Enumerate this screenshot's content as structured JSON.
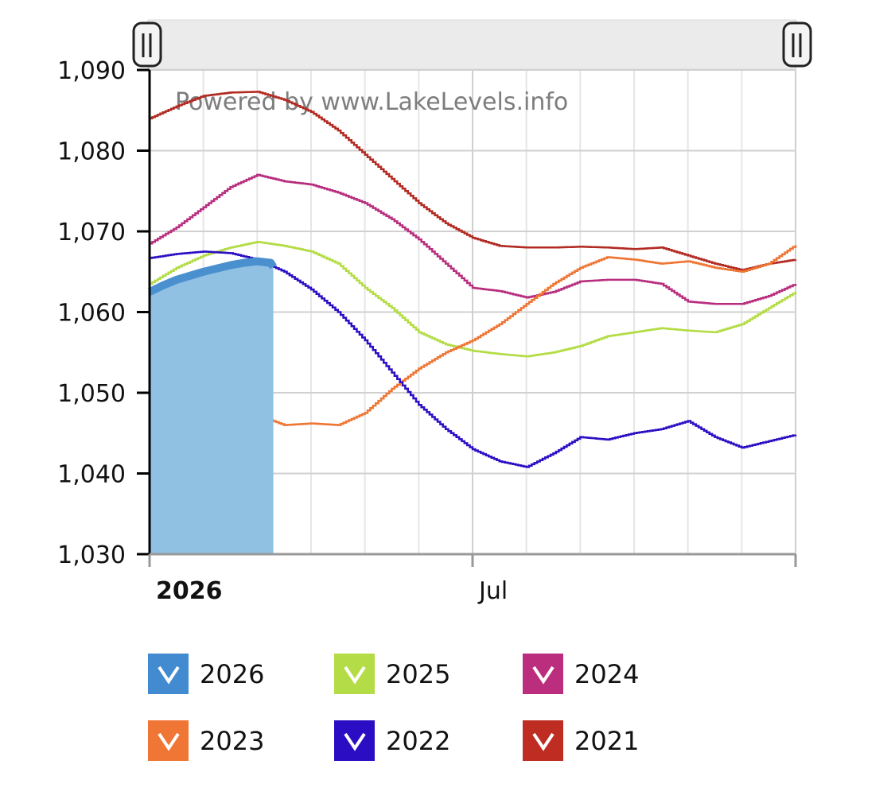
{
  "chart_data": {
    "type": "line",
    "watermark": "Powered by www.LakeLevels.info",
    "x_domain": [
      0,
      12
    ],
    "x_ticks": [
      {
        "x": 0,
        "label": "2026",
        "bold": true
      },
      {
        "x": 6,
        "label": "Jul",
        "bold": false
      }
    ],
    "y_ticks": [
      1030,
      1040,
      1050,
      1060,
      1070,
      1080,
      1090
    ],
    "y_tick_labels": [
      "1,030",
      "1,040",
      "1,050",
      "1,060",
      "1,070",
      "1,080",
      "1,090"
    ],
    "ylim": [
      1030,
      1090
    ],
    "grid": true,
    "legend_position": "bottom",
    "series": [
      {
        "name": "2021",
        "color": "#b22a22",
        "type": "line",
        "points": [
          [
            0,
            1084
          ],
          [
            0.5,
            1085.5
          ],
          [
            1,
            1086.8
          ],
          [
            1.5,
            1087.2
          ],
          [
            2,
            1087.3
          ],
          [
            2.5,
            1086.3
          ],
          [
            3,
            1084.8
          ],
          [
            3.5,
            1082.5
          ],
          [
            4,
            1079.5
          ],
          [
            4.5,
            1076.5
          ],
          [
            5,
            1073.5
          ],
          [
            5.5,
            1071
          ],
          [
            6,
            1069.2
          ],
          [
            6.5,
            1068.2
          ],
          [
            7,
            1068
          ],
          [
            7.5,
            1068
          ],
          [
            8,
            1068.1
          ],
          [
            8.5,
            1068
          ],
          [
            9,
            1067.8
          ],
          [
            9.5,
            1068
          ],
          [
            10,
            1067
          ],
          [
            10.5,
            1066
          ],
          [
            11,
            1065.2
          ],
          [
            11.5,
            1066
          ],
          [
            12,
            1066.5
          ]
        ]
      },
      {
        "name": "2024",
        "color": "#b82e7e",
        "type": "line",
        "points": [
          [
            0,
            1068.5
          ],
          [
            0.5,
            1070.5
          ],
          [
            1,
            1073
          ],
          [
            1.5,
            1075.5
          ],
          [
            2,
            1077
          ],
          [
            2.5,
            1076.2
          ],
          [
            3,
            1075.8
          ],
          [
            3.5,
            1074.8
          ],
          [
            4,
            1073.5
          ],
          [
            4.5,
            1071.5
          ],
          [
            5,
            1069
          ],
          [
            5.5,
            1066
          ],
          [
            6,
            1063
          ],
          [
            6.5,
            1062.6
          ],
          [
            7,
            1061.8
          ],
          [
            7.5,
            1062.5
          ],
          [
            8,
            1063.8
          ],
          [
            8.5,
            1064
          ],
          [
            9,
            1064
          ],
          [
            9.5,
            1063.5
          ],
          [
            10,
            1061.3
          ],
          [
            10.5,
            1061
          ],
          [
            11,
            1061
          ],
          [
            11.5,
            1062
          ],
          [
            12,
            1063.5
          ]
        ]
      },
      {
        "name": "2025",
        "color": "#b4dc46",
        "type": "line",
        "points": [
          [
            0,
            1063.5
          ],
          [
            0.5,
            1065.5
          ],
          [
            1,
            1067
          ],
          [
            1.5,
            1068
          ],
          [
            2,
            1068.7
          ],
          [
            2.5,
            1068.2
          ],
          [
            3,
            1067.5
          ],
          [
            3.5,
            1066
          ],
          [
            4,
            1063
          ],
          [
            4.5,
            1060.5
          ],
          [
            5,
            1057.5
          ],
          [
            5.5,
            1056
          ],
          [
            6,
            1055.2
          ],
          [
            6.5,
            1054.8
          ],
          [
            7,
            1054.5
          ],
          [
            7.5,
            1055
          ],
          [
            8,
            1055.8
          ],
          [
            8.5,
            1057
          ],
          [
            9,
            1057.5
          ],
          [
            9.5,
            1058
          ],
          [
            10,
            1057.7
          ],
          [
            10.5,
            1057.5
          ],
          [
            11,
            1058.5
          ],
          [
            11.5,
            1060.5
          ],
          [
            12,
            1062.5
          ]
        ]
      },
      {
        "name": "2023",
        "color": "#ee7634",
        "type": "line",
        "points": [
          [
            0,
            1045.2
          ],
          [
            0.5,
            1045.8
          ],
          [
            1,
            1047
          ],
          [
            1.5,
            1047.5
          ],
          [
            2,
            1047.2
          ],
          [
            2.5,
            1046
          ],
          [
            3,
            1046.2
          ],
          [
            3.5,
            1046
          ],
          [
            4,
            1047.5
          ],
          [
            4.5,
            1050.5
          ],
          [
            5,
            1053
          ],
          [
            5.5,
            1055
          ],
          [
            6,
            1056.5
          ],
          [
            6.5,
            1058.5
          ],
          [
            7,
            1061
          ],
          [
            7.5,
            1063.5
          ],
          [
            8,
            1065.5
          ],
          [
            8.5,
            1066.8
          ],
          [
            9,
            1066.5
          ],
          [
            9.5,
            1066
          ],
          [
            10,
            1066.3
          ],
          [
            10.5,
            1065.5
          ],
          [
            11,
            1065
          ],
          [
            11.5,
            1066
          ],
          [
            12,
            1068.3
          ]
        ]
      },
      {
        "name": "2022",
        "color": "#2b0ec4",
        "type": "line",
        "points": [
          [
            0,
            1066.7
          ],
          [
            0.5,
            1067.2
          ],
          [
            1,
            1067.5
          ],
          [
            1.5,
            1067.3
          ],
          [
            2,
            1066.5
          ],
          [
            2.5,
            1065
          ],
          [
            3,
            1062.8
          ],
          [
            3.5,
            1060
          ],
          [
            4,
            1056.5
          ],
          [
            4.5,
            1052.5
          ],
          [
            5,
            1048.5
          ],
          [
            5.5,
            1045.5
          ],
          [
            6,
            1043
          ],
          [
            6.5,
            1041.5
          ],
          [
            7,
            1040.8
          ],
          [
            7.5,
            1042.5
          ],
          [
            8,
            1044.5
          ],
          [
            8.5,
            1044.2
          ],
          [
            9,
            1045
          ],
          [
            9.5,
            1045.5
          ],
          [
            10,
            1046.5
          ],
          [
            10.5,
            1044.5
          ],
          [
            11,
            1043.2
          ],
          [
            11.5,
            1044
          ],
          [
            12,
            1044.8
          ]
        ]
      },
      {
        "name": "2026",
        "color": "#4a90cf",
        "type": "area",
        "fill": "#90c1e3",
        "points": [
          [
            0,
            1062.5
          ],
          [
            0.25,
            1063.3
          ],
          [
            0.5,
            1064
          ],
          [
            0.75,
            1064.5
          ],
          [
            1,
            1065
          ],
          [
            1.25,
            1065.4
          ],
          [
            1.5,
            1065.8
          ],
          [
            1.75,
            1066.1
          ],
          [
            2,
            1066.3
          ],
          [
            2.25,
            1066.1
          ],
          [
            2.3,
            1065.6
          ]
        ]
      }
    ]
  },
  "navigator": {
    "left_handle": "navigator-left-handle",
    "right_handle": "navigator-right-handle"
  },
  "legend": {
    "items": [
      {
        "label": "2026",
        "color": "#428bd0"
      },
      {
        "label": "2025",
        "color": "#b4dc46"
      },
      {
        "label": "2024",
        "color": "#bb2e7e"
      },
      {
        "label": "2023",
        "color": "#ef7634"
      },
      {
        "label": "2022",
        "color": "#2b0ec4"
      },
      {
        "label": "2021",
        "color": "#be2c22"
      }
    ]
  }
}
